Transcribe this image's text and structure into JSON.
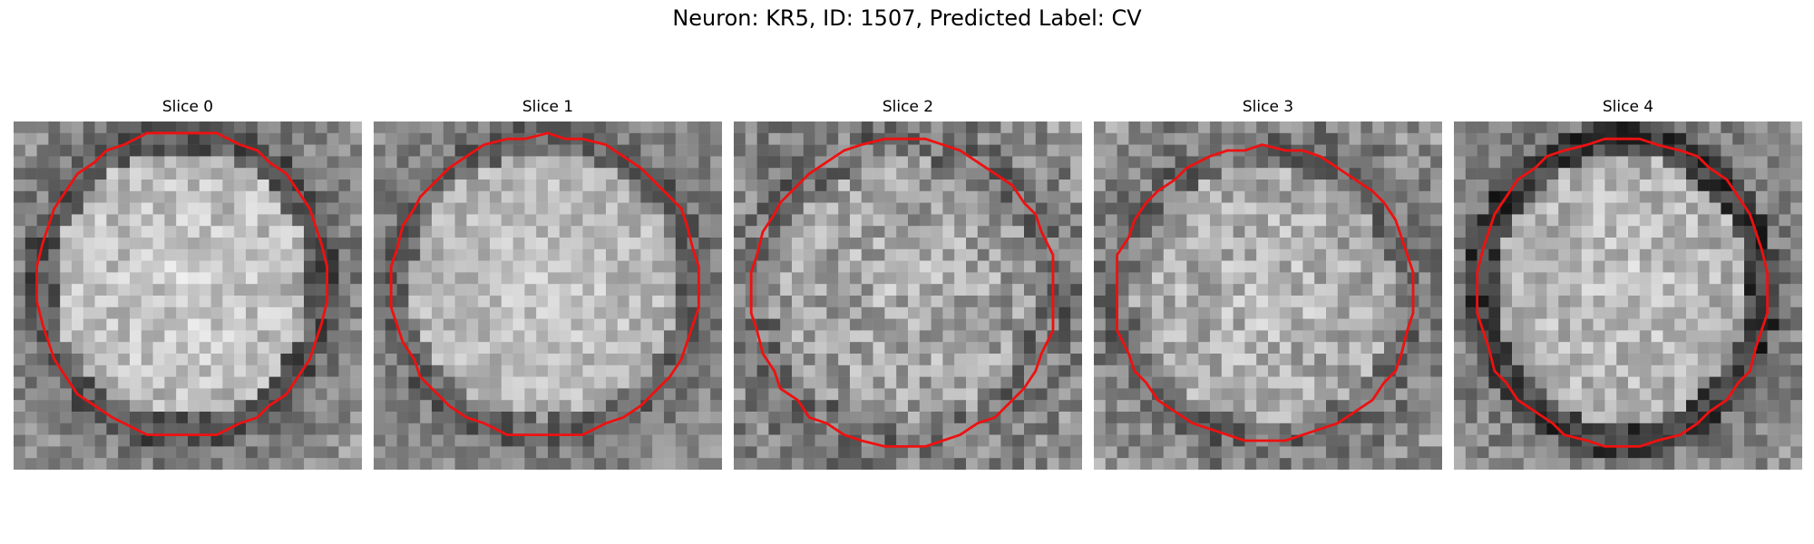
{
  "figure": {
    "title": "Neuron: KR5, ID: 1507, Predicted Label: CV"
  },
  "slices": [
    {
      "label": "Slice 0"
    },
    {
      "label": "Slice 1"
    },
    {
      "label": "Slice 2"
    },
    {
      "label": "Slice 3"
    },
    {
      "label": "Slice 4"
    }
  ],
  "colors": {
    "contour": "#ee1111",
    "background": "#ffffff"
  }
}
